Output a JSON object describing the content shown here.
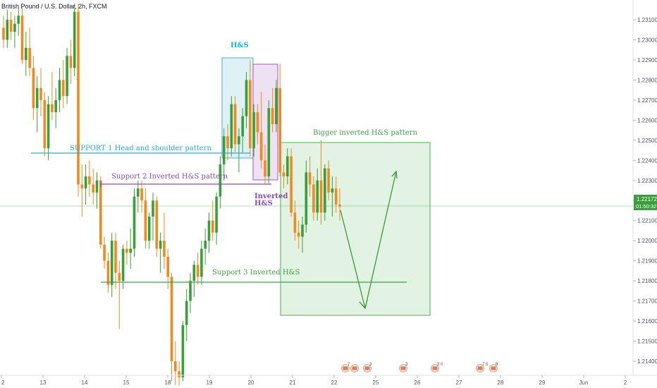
{
  "symbol_title": "British Pound / U.S. Dollar, 2h, FXCM",
  "price_axis": {
    "ticks": [
      "1.23100",
      "1.23000",
      "1.22900",
      "1.22800",
      "1.22700",
      "1.22600",
      "1.22500",
      "1.22400",
      "1.22300",
      "1.22200",
      "1.22100",
      "1.22000",
      "1.21900",
      "1.21800",
      "1.21700",
      "1.21600",
      "1.21500",
      "1.21400"
    ],
    "current_price": "1.22172",
    "countdown": "01:50:32"
  },
  "time_axis": {
    "ticks": [
      "2",
      "13",
      "14",
      "15",
      "18",
      "19",
      "20",
      "21",
      "22",
      "25",
      "26",
      "27",
      "28",
      "29",
      "Jun",
      "2"
    ]
  },
  "annotations": {
    "hs_label": "H&S",
    "inverted_hs_label": "Inverted\nH&S",
    "support1": "SUPPORT 1 Head and shoulder pattern",
    "support2": "Support 2 Inverted H&S pattern",
    "support3": "Support 3 Inverted H&S",
    "bigger_inverted": "Bigger inverted H&S pattern"
  },
  "events": [
    "7",
    "",
    "3",
    "3",
    "3 0",
    "7 5",
    "8"
  ],
  "colors": {
    "bull": "#3a9e3a",
    "bear": "#f0891e",
    "hs_box": "#49b3c9",
    "inv_box": "#a05ab5",
    "green_box": "#4caf50",
    "support1": "#21b1c4",
    "support2": "#8a4fa8",
    "support3": "#43a047"
  },
  "chart_data": {
    "type": "candlestick",
    "title": "British Pound / U.S. Dollar, 2h, FXCM",
    "ylim": [
      1.2135,
      1.2318
    ],
    "candles": [
      [
        1.2306,
        1.2312,
        1.2296,
        1.23
      ],
      [
        1.23,
        1.2315,
        1.2296,
        1.231
      ],
      [
        1.231,
        1.2314,
        1.23,
        1.2304
      ],
      [
        1.2304,
        1.2312,
        1.2296,
        1.2308
      ],
      [
        1.2308,
        1.2316,
        1.2302,
        1.2312
      ],
      [
        1.2312,
        1.2316,
        1.2288,
        1.229
      ],
      [
        1.229,
        1.2304,
        1.2282,
        1.2296
      ],
      [
        1.2296,
        1.2306,
        1.2282,
        1.2286
      ],
      [
        1.2286,
        1.2292,
        1.226,
        1.2266
      ],
      [
        1.2266,
        1.2282,
        1.2254,
        1.2276
      ],
      [
        1.2276,
        1.2286,
        1.2262,
        1.227
      ],
      [
        1.227,
        1.2274,
        1.2242,
        1.2246
      ],
      [
        1.2246,
        1.2272,
        1.224,
        1.2268
      ],
      [
        1.2268,
        1.2284,
        1.226,
        1.2264
      ],
      [
        1.2264,
        1.2276,
        1.2256,
        1.227
      ],
      [
        1.227,
        1.2286,
        1.2264,
        1.228
      ],
      [
        1.228,
        1.229,
        1.2266,
        1.2272
      ],
      [
        1.2272,
        1.2296,
        1.2268,
        1.2292
      ],
      [
        1.2292,
        1.23,
        1.2278,
        1.2286
      ],
      [
        1.2286,
        1.2318,
        1.2282,
        1.2314
      ],
      [
        1.2314,
        1.2318,
        1.2222,
        1.2228
      ],
      [
        1.2228,
        1.2238,
        1.2212,
        1.2226
      ],
      [
        1.2226,
        1.2238,
        1.2218,
        1.2232
      ],
      [
        1.2232,
        1.224,
        1.2222,
        1.2228
      ],
      [
        1.2228,
        1.2236,
        1.2218,
        1.2224
      ],
      [
        1.2224,
        1.2234,
        1.2216,
        1.223
      ],
      [
        1.223,
        1.2232,
        1.2196,
        1.2198
      ],
      [
        1.2198,
        1.2202,
        1.2186,
        1.219
      ],
      [
        1.219,
        1.2194,
        1.2174,
        1.2178
      ],
      [
        1.2178,
        1.2204,
        1.2172,
        1.22
      ],
      [
        1.22,
        1.2204,
        1.2176,
        1.2184
      ],
      [
        1.2184,
        1.219,
        1.2156,
        1.218
      ],
      [
        1.218,
        1.2198,
        1.2176,
        1.2196
      ],
      [
        1.2196,
        1.22,
        1.2188,
        1.2194
      ],
      [
        1.2194,
        1.2206,
        1.2186,
        1.2196
      ],
      [
        1.2196,
        1.2226,
        1.2192,
        1.2222
      ],
      [
        1.2222,
        1.223,
        1.2214,
        1.2226
      ],
      [
        1.2226,
        1.223,
        1.2214,
        1.222
      ],
      [
        1.222,
        1.2226,
        1.2196,
        1.22
      ],
      [
        1.22,
        1.2214,
        1.2196,
        1.2212
      ],
      [
        1.2212,
        1.2224,
        1.22,
        1.222
      ],
      [
        1.222,
        1.2222,
        1.2192,
        1.2196
      ],
      [
        1.2196,
        1.2204,
        1.2184,
        1.22
      ],
      [
        1.22,
        1.2214,
        1.2186,
        1.2192
      ],
      [
        1.2192,
        1.2196,
        1.2176,
        1.2182
      ],
      [
        1.2182,
        1.2184,
        1.213,
        1.214
      ],
      [
        1.214,
        1.215,
        1.2128,
        1.2135
      ],
      [
        1.2135,
        1.214,
        1.2128,
        1.2132
      ],
      [
        1.2132,
        1.216,
        1.213,
        1.2158
      ],
      [
        1.2158,
        1.2176,
        1.215,
        1.217
      ],
      [
        1.217,
        1.2184,
        1.2164,
        1.218
      ],
      [
        1.218,
        1.219,
        1.2172,
        1.2188
      ],
      [
        1.2188,
        1.2194,
        1.2178,
        1.2182
      ],
      [
        1.2182,
        1.22,
        1.2178,
        1.2196
      ],
      [
        1.2196,
        1.2206,
        1.2188,
        1.22
      ],
      [
        1.22,
        1.2214,
        1.2194,
        1.221
      ],
      [
        1.221,
        1.222,
        1.22,
        1.2204
      ],
      [
        1.2204,
        1.2224,
        1.2198,
        1.2222
      ],
      [
        1.2222,
        1.2242,
        1.2216,
        1.2238
      ],
      [
        1.2238,
        1.2256,
        1.223,
        1.2252
      ],
      [
        1.2252,
        1.2258,
        1.224,
        1.2246
      ],
      [
        1.2246,
        1.2272,
        1.2242,
        1.2268
      ],
      [
        1.2268,
        1.2272,
        1.2244,
        1.2248
      ],
      [
        1.2248,
        1.2256,
        1.2234,
        1.2252
      ],
      [
        1.2252,
        1.2266,
        1.2244,
        1.2262
      ],
      [
        1.2262,
        1.2284,
        1.2256,
        1.228
      ],
      [
        1.228,
        1.229,
        1.2242,
        1.2246
      ],
      [
        1.2246,
        1.2268,
        1.2242,
        1.2264
      ],
      [
        1.2264,
        1.2268,
        1.2248,
        1.2254
      ],
      [
        1.2254,
        1.2274,
        1.2236,
        1.224
      ],
      [
        1.224,
        1.2248,
        1.2228,
        1.2232
      ],
      [
        1.2232,
        1.227,
        1.2228,
        1.2266
      ],
      [
        1.2266,
        1.2276,
        1.2254,
        1.2258
      ],
      [
        1.2258,
        1.228,
        1.2254,
        1.2276
      ],
      [
        1.2276,
        1.2288,
        1.2232,
        1.2234
      ],
      [
        1.2234,
        1.2238,
        1.2226,
        1.2232
      ],
      [
        1.2232,
        1.2246,
        1.2228,
        1.2242
      ],
      [
        1.2242,
        1.2246,
        1.2212,
        1.2214
      ],
      [
        1.2214,
        1.222,
        1.22,
        1.2204
      ],
      [
        1.2204,
        1.221,
        1.2196,
        1.2202
      ],
      [
        1.2202,
        1.2212,
        1.2194,
        1.2208
      ],
      [
        1.2208,
        1.224,
        1.2204,
        1.2234
      ],
      [
        1.2234,
        1.2242,
        1.2222,
        1.2228
      ],
      [
        1.2228,
        1.2232,
        1.221,
        1.2214
      ],
      [
        1.2214,
        1.2236,
        1.221,
        1.223
      ],
      [
        1.223,
        1.225,
        1.2208,
        1.2214
      ],
      [
        1.2214,
        1.2238,
        1.221,
        1.2236
      ],
      [
        1.2236,
        1.224,
        1.222,
        1.2224
      ],
      [
        1.2224,
        1.2232,
        1.2212,
        1.2226
      ],
      [
        1.2226,
        1.2232,
        1.2214,
        1.2218
      ],
      [
        1.2218,
        1.2226,
        1.221,
        1.2217
      ]
    ],
    "levels": [
      {
        "name": "SUPPORT 1 Head and shoulder pattern",
        "price": 1.2246
      },
      {
        "name": "Support 2 Inverted H&S pattern",
        "price": 1.223
      },
      {
        "name": "Support 3 Inverted H&S",
        "price": 1.218
      },
      {
        "name": "current price",
        "price": 1.22172
      }
    ],
    "xaxis_ticks": [
      "2",
      "13",
      "14",
      "15",
      "18",
      "19",
      "20",
      "21",
      "22",
      "25",
      "26",
      "27",
      "28",
      "29",
      "Jun",
      "2"
    ],
    "yaxis_ticks": [
      1.231,
      1.23,
      1.229,
      1.228,
      1.227,
      1.226,
      1.225,
      1.224,
      1.223,
      1.222,
      1.221,
      1.22,
      1.219,
      1.218,
      1.217,
      1.216,
      1.215,
      1.214
    ],
    "grid": false,
    "legend": "none"
  }
}
